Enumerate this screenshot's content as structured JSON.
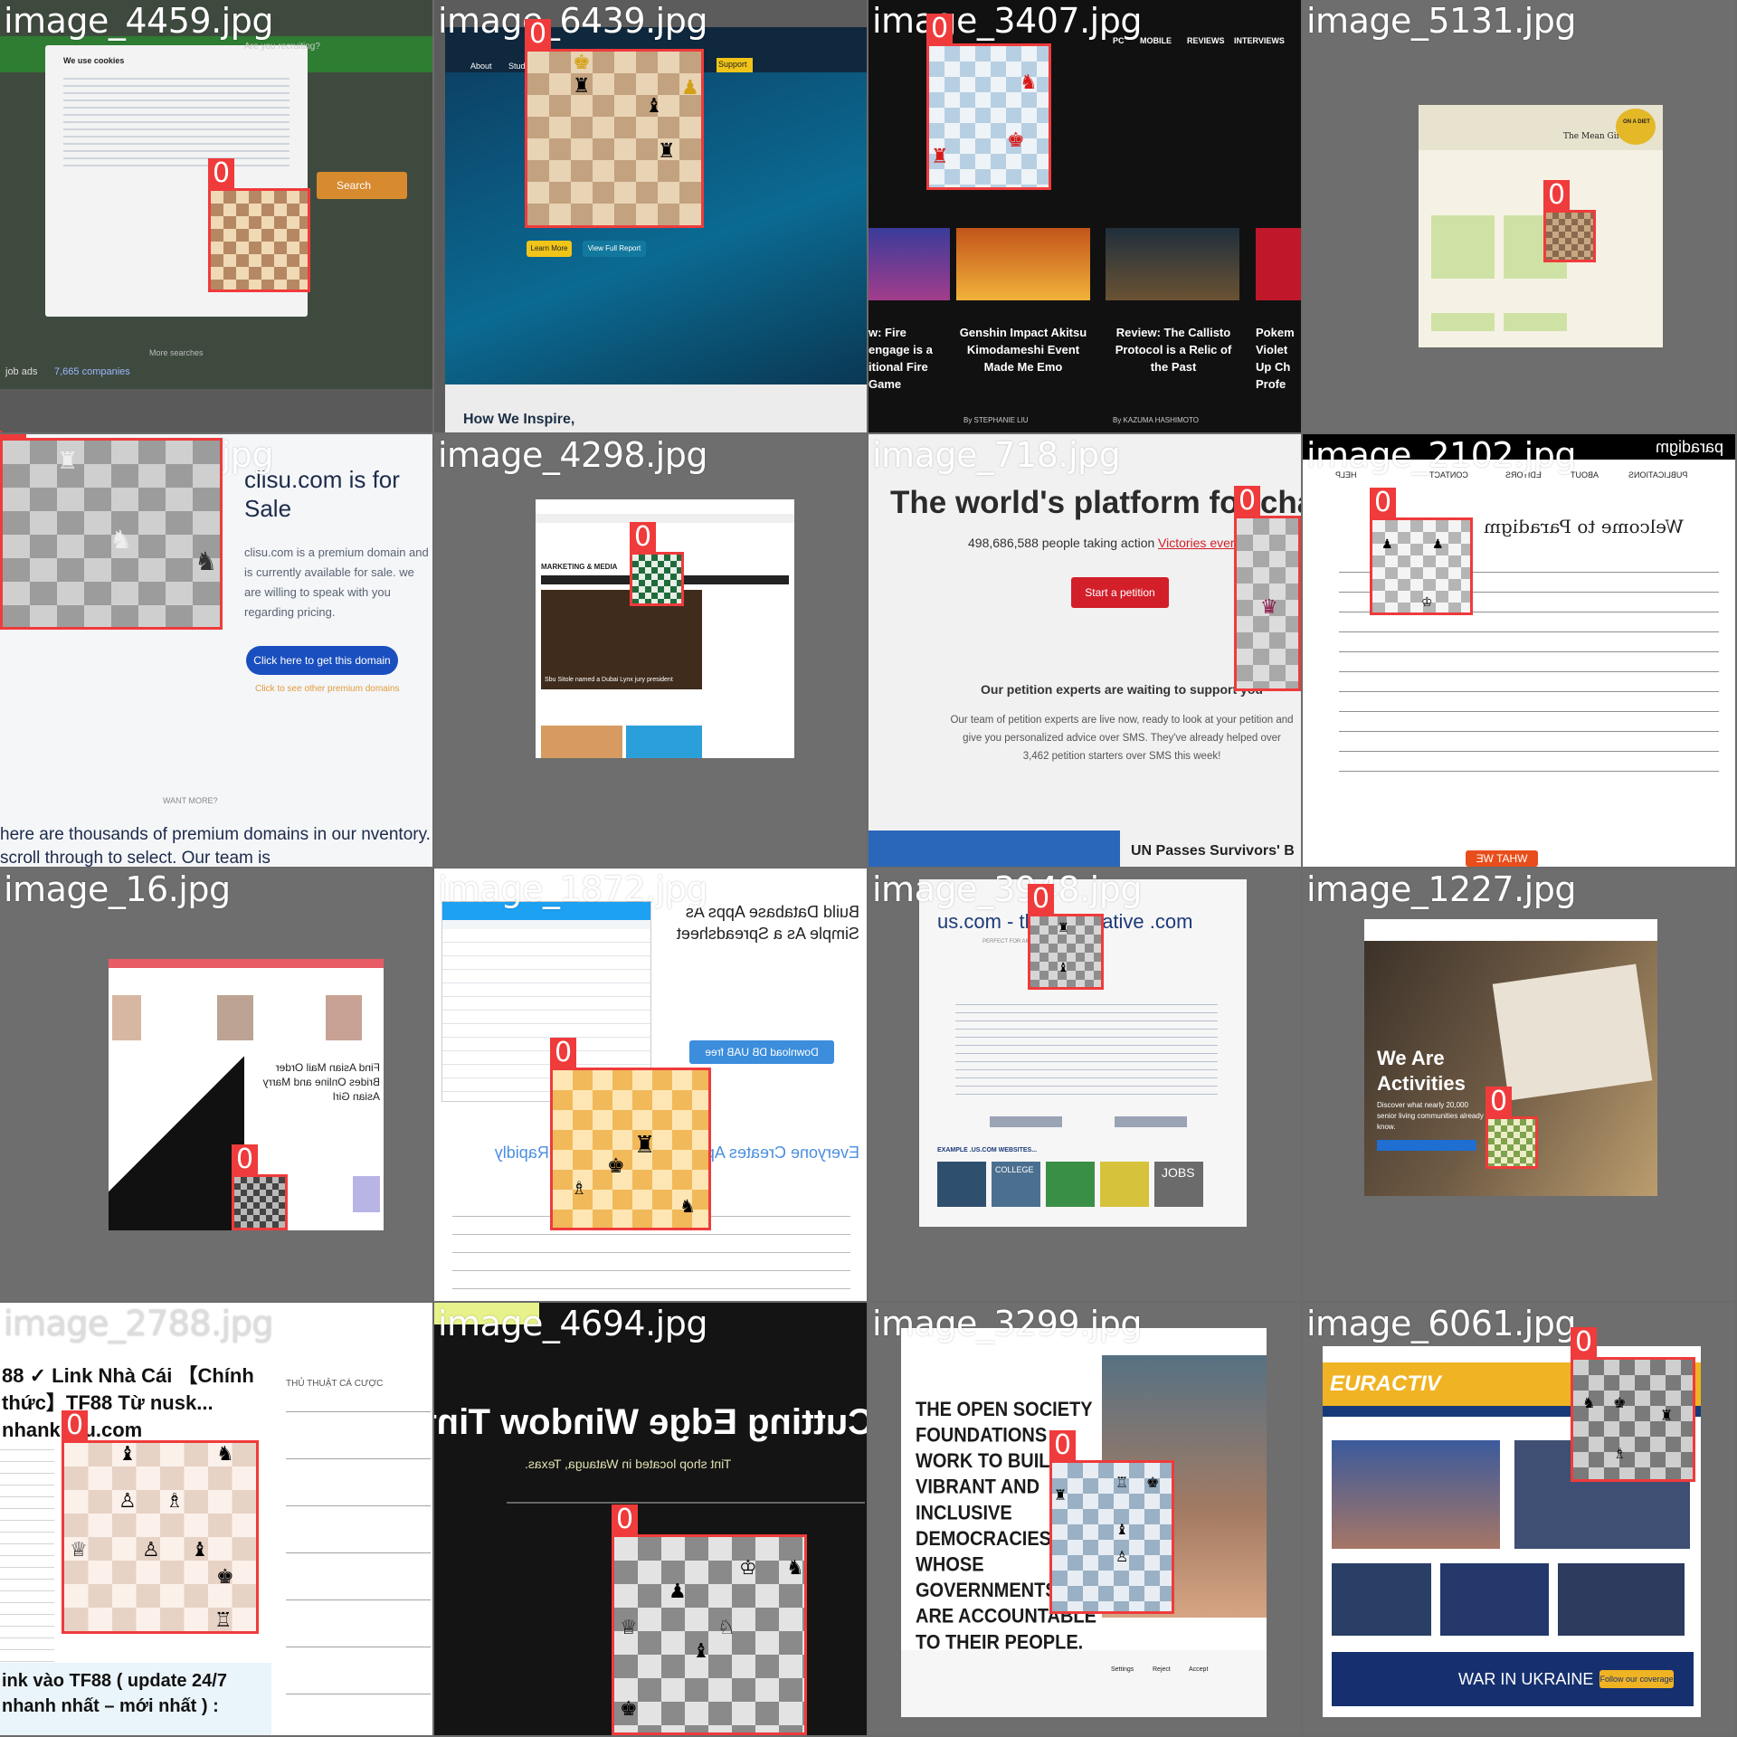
{
  "tiles": [
    {
      "file": "image_4459.jpg",
      "box_label": "0",
      "texts": [
        "We use cookies",
        "Search",
        "Are you recruiting?",
        "job ads",
        "7,665 companies",
        "More searches"
      ]
    },
    {
      "file": "image_6439.jpg",
      "box_label": "0",
      "texts": [
        "About",
        "Student S",
        "Support",
        "Learn More",
        "View Full Report",
        "How We Inspire,"
      ]
    },
    {
      "file": "image_3407.jpg",
      "box_label": "0",
      "texts": [
        "PC",
        "MOBILE",
        "REVIEWS",
        "INTERVIEWS",
        "Genshin Impact Akitsu Kimodameshi Event Made Me Emo",
        "Review: The Callisto Protocol is a Relic of the Past",
        "Pokem Violet Up Ch Profe",
        "w: Fire engage is a itional Fire Game",
        "By STEPHANIE LIU",
        "By KAZUMA HASHIMOTO"
      ]
    },
    {
      "file": "image_5131.jpg",
      "box_label": "0",
      "texts": [
        "The Mean Girls'",
        "ON A DIET"
      ]
    },
    {
      "file": "image_6140.jpg",
      "box_label": "0",
      "texts": [
        "clisu.com is for Sale",
        "clisu.com is a premium domain and is currently available for sale. we are willing to speak with you regarding pricing.",
        "Click here to get this domain",
        "Click to see other premium domains",
        "WANT MORE?",
        "here are thousands of premium domains in our nventory. scroll through to select. Our team is"
      ]
    },
    {
      "file": "image_4298.jpg",
      "box_label": "0",
      "texts": [
        "MARKETING & MEDIA",
        "Sbu Sitole named a Dubai Lynx jury president"
      ]
    },
    {
      "file": "image_718.jpg",
      "box_label": "0",
      "texts": [
        "The world's platform for char",
        "498,686,588 people taking action",
        "Victories every",
        "Start a petition",
        "Our petition experts are waiting to support you",
        "Our team of petition experts are live now, ready to look at your petition and give you personalized advice over SMS. They've already helped over 3,462 petition starters over SMS this week!",
        "UN Passes Survivors' B"
      ]
    },
    {
      "file": "image_2102.jpg",
      "box_label": "0",
      "texts": [
        "paradigm",
        "Welcome to Paradigm",
        "PUBLICATIONS",
        "ABOUT",
        "EDITORS",
        "CONTACT",
        "HELP",
        "WHAT WE OFFER"
      ]
    },
    {
      "file": "image_16.jpg",
      "box_label": "0",
      "texts": [
        "Find Asian Mail Order Brides Online and Marry Asian Girl"
      ]
    },
    {
      "file": "image_1872.jpg",
      "box_label": "0",
      "texts": [
        "Build Database Apps As Simple As a Spreadsheet",
        "Download DB UAB free edition",
        "Everyone Creates Applications, Easily and Rapidly"
      ]
    },
    {
      "file": "image_3948.jpg",
      "box_label": "0",
      "texts": [
        "us.com - the alternative .com",
        "PERFECT FOR AMERICAN COMPANIES",
        "EXAMPLE .US.COM WEBSITES...",
        "COLLEGE",
        "JOBS"
      ]
    },
    {
      "file": "image_1227.jpg",
      "box_label": "0",
      "texts": [
        "We Are Activities",
        "Discover what nearly 20,000 senior living communities already know."
      ]
    },
    {
      "file": "image_2788.jpg",
      "box_label": "0",
      "texts": [
        "88 ✓ Link Nhà Cái 【Chính thức】TF88 Từ nusk... nhankhau.com",
        "THỦ THUẬT CÁ CƯỢC",
        "ink vào TF88 ( update 24/7 nhanh nhất – mới nhất ) :"
      ]
    },
    {
      "file": "image_4694.jpg",
      "box_label": "0",
      "texts": [
        "Cutting Edge Window Tinting",
        "Tint shop located in Watauga, Texas."
      ]
    },
    {
      "file": "image_3299.jpg",
      "box_label": "0",
      "texts": [
        "THE OPEN SOCIETY FOUNDATIONS WORK TO BUILD VIBRANT AND INCLUSIVE DEMOCRACIES WHOSE GOVERNMENTS ARE ACCOUNTABLE TO THEIR PEOPLE.",
        "Settings",
        "Reject",
        "Accept"
      ]
    },
    {
      "file": "image_6061.jpg",
      "box_label": "0",
      "texts": [
        "EURACTIV",
        "WAR IN UKRAINE",
        "Follow our coverage"
      ]
    }
  ],
  "colors": {
    "box": "#ef3b3b",
    "background": "#6b6b6b"
  }
}
